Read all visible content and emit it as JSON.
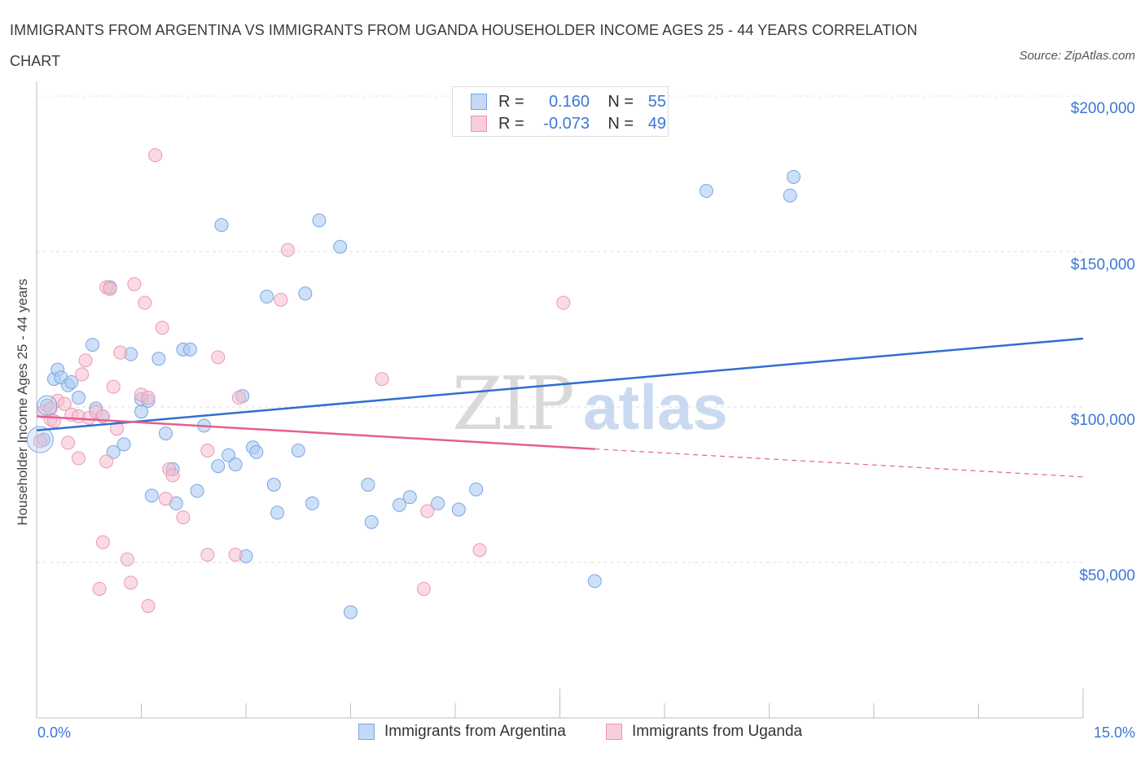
{
  "title": "IMMIGRANTS FROM ARGENTINA VS IMMIGRANTS FROM UGANDA HOUSEHOLDER INCOME AGES 25 - 44 YEARS CORRELATION CHART",
  "source": "Source: ZipAtlas.com",
  "colors": {
    "argentina_fill": "#aecbf2",
    "argentina_stroke": "#7aa6e3",
    "argentina_line": "#2f6fd0",
    "uganda_fill": "#f6bed0",
    "uganda_stroke": "#ec97b2",
    "uganda_line": "#e4608c",
    "accent_text": "#3b77d6"
  },
  "legend": {
    "rows": [
      {
        "r_label": "R =",
        "r_value": "0.160",
        "n_label": "N =",
        "n_value": "55"
      },
      {
        "r_label": "R =",
        "r_value": "-0.073",
        "n_label": "N =",
        "n_value": "49"
      }
    ]
  },
  "chart_data": {
    "type": "scatter",
    "title": "IMMIGRANTS FROM ARGENTINA VS IMMIGRANTS FROM UGANDA HOUSEHOLDER INCOME AGES 25 - 44 YEARS CORRELATION CHART",
    "xlabel": "",
    "ylabel": "Householder Income Ages 25 - 44 years",
    "xlim": [
      0,
      15
    ],
    "ylim": [
      0,
      200000
    ],
    "x_tick_labels": [
      "0.0%",
      "15.0%"
    ],
    "y_ticks": [
      50000,
      100000,
      150000,
      200000
    ],
    "y_tick_labels": [
      "$50,000",
      "$100,000",
      "$150,000",
      "$200,000"
    ],
    "grid": true,
    "legend_position": "top-center",
    "watermark": "ZIPatlas",
    "series": [
      {
        "name": "Immigrants from Argentina",
        "r": 0.16,
        "n": 55,
        "trend": {
          "x0": 0.0,
          "y0": 92500,
          "x1": 15.0,
          "y1": 122000
        },
        "points": [
          [
            0.1,
            89500
          ],
          [
            0.15,
            100500
          ],
          [
            0.25,
            109000
          ],
          [
            0.3,
            112000
          ],
          [
            0.35,
            109500
          ],
          [
            0.45,
            107000
          ],
          [
            0.5,
            108000
          ],
          [
            0.6,
            103000
          ],
          [
            0.8,
            120000
          ],
          [
            0.85,
            99500
          ],
          [
            0.95,
            97000
          ],
          [
            1.1,
            85500
          ],
          [
            1.25,
            88000
          ],
          [
            1.35,
            117000
          ],
          [
            1.5,
            98500
          ],
          [
            1.5,
            102500
          ],
          [
            1.6,
            102000
          ],
          [
            1.65,
            71500
          ],
          [
            1.75,
            115500
          ],
          [
            1.85,
            91500
          ],
          [
            1.95,
            80000
          ],
          [
            2.0,
            69000
          ],
          [
            2.1,
            118500
          ],
          [
            2.2,
            118500
          ],
          [
            2.3,
            73000
          ],
          [
            2.4,
            94000
          ],
          [
            2.6,
            81000
          ],
          [
            2.65,
            158500
          ],
          [
            2.75,
            84500
          ],
          [
            2.85,
            81500
          ],
          [
            2.95,
            103500
          ],
          [
            3.0,
            52000
          ],
          [
            3.1,
            87000
          ],
          [
            3.15,
            85500
          ],
          [
            3.3,
            135500
          ],
          [
            3.4,
            75000
          ],
          [
            3.45,
            66000
          ],
          [
            3.75,
            86000
          ],
          [
            3.85,
            136500
          ],
          [
            3.95,
            69000
          ],
          [
            4.05,
            160000
          ],
          [
            4.35,
            151500
          ],
          [
            4.5,
            34000
          ],
          [
            4.75,
            75000
          ],
          [
            4.8,
            63000
          ],
          [
            5.2,
            68500
          ],
          [
            5.35,
            71000
          ],
          [
            5.75,
            69000
          ],
          [
            6.05,
            67000
          ],
          [
            6.3,
            73500
          ],
          [
            8.0,
            44000
          ],
          [
            9.6,
            169500
          ],
          [
            10.8,
            168000
          ],
          [
            10.85,
            174000
          ],
          [
            1.05,
            138500
          ]
        ]
      },
      {
        "name": "Immigrants from Uganda",
        "r": -0.073,
        "n": 49,
        "trend": {
          "x0": 0.0,
          "y0": 97000,
          "x1": 8.0,
          "y1": 86500,
          "dashed_to_x": 15.0,
          "dashed_to_y": 77500
        },
        "points": [
          [
            0.05,
            89000
          ],
          [
            0.1,
            98500
          ],
          [
            0.2,
            96000
          ],
          [
            0.25,
            95500
          ],
          [
            0.3,
            102000
          ],
          [
            0.4,
            101000
          ],
          [
            0.45,
            88500
          ],
          [
            0.5,
            97500
          ],
          [
            0.6,
            97000
          ],
          [
            0.65,
            110500
          ],
          [
            0.6,
            83500
          ],
          [
            0.7,
            115000
          ],
          [
            0.75,
            96500
          ],
          [
            0.85,
            98500
          ],
          [
            0.9,
            41500
          ],
          [
            0.95,
            56500
          ],
          [
            0.95,
            97000
          ],
          [
            1.0,
            82500
          ],
          [
            1.0,
            138500
          ],
          [
            1.05,
            138000
          ],
          [
            1.1,
            106500
          ],
          [
            1.15,
            93000
          ],
          [
            1.2,
            117500
          ],
          [
            1.3,
            51000
          ],
          [
            1.35,
            43500
          ],
          [
            1.4,
            139500
          ],
          [
            1.5,
            104000
          ],
          [
            1.55,
            133500
          ],
          [
            1.6,
            103000
          ],
          [
            1.6,
            36000
          ],
          [
            1.7,
            181000
          ],
          [
            1.8,
            125500
          ],
          [
            1.85,
            70500
          ],
          [
            1.9,
            80000
          ],
          [
            1.95,
            78000
          ],
          [
            2.1,
            64500
          ],
          [
            2.45,
            52500
          ],
          [
            2.45,
            86000
          ],
          [
            2.6,
            116000
          ],
          [
            2.85,
            52500
          ],
          [
            2.9,
            103000
          ],
          [
            3.5,
            134500
          ],
          [
            3.6,
            150500
          ],
          [
            4.95,
            109000
          ],
          [
            5.55,
            41500
          ],
          [
            5.6,
            66500
          ],
          [
            6.35,
            54000
          ],
          [
            7.55,
            133500
          ],
          [
            0.2,
            99500
          ]
        ]
      }
    ]
  },
  "bottom_legend": {
    "argentina": "Immigrants from Argentina",
    "uganda": "Immigrants from Uganda"
  }
}
